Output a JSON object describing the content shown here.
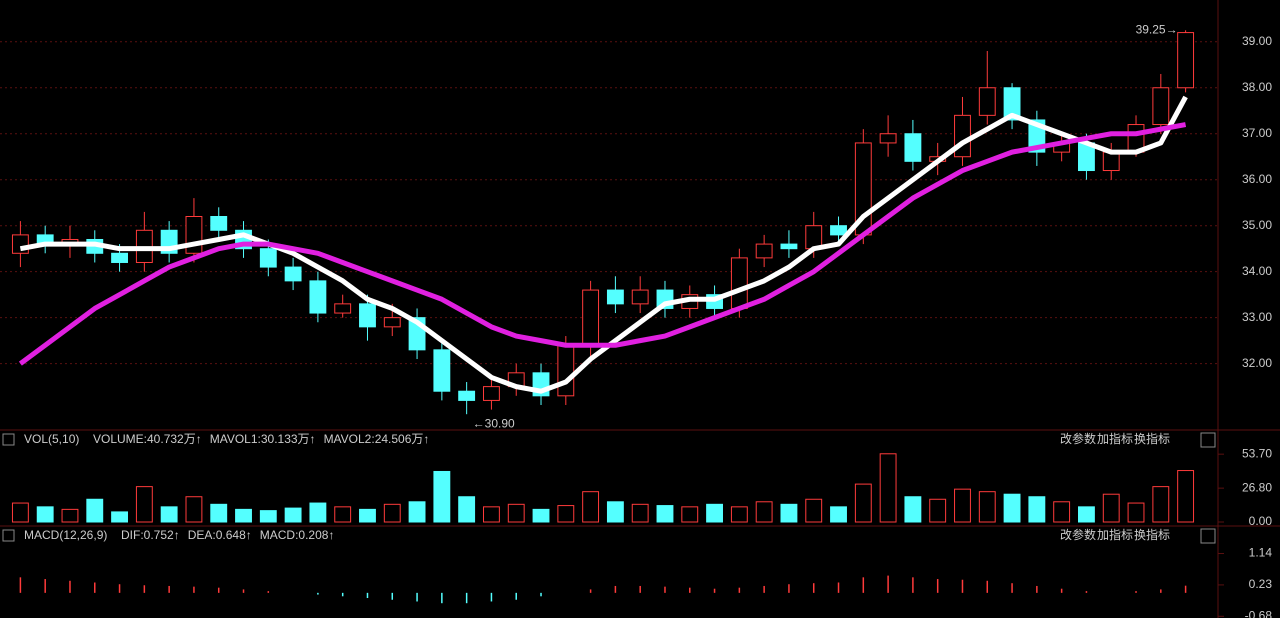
{
  "chart_data": [
    {
      "type": "candlestick",
      "open": [
        34.4,
        34.8,
        34.6,
        34.7,
        34.4,
        34.2,
        34.9,
        34.4,
        35.2,
        34.9,
        34.5,
        34.1,
        33.8,
        33.1,
        33.3,
        32.8,
        33.0,
        32.3,
        31.4,
        31.2,
        31.5,
        31.8,
        31.3,
        32.4,
        33.6,
        33.3,
        33.6,
        33.2,
        33.5,
        33.2,
        34.3,
        34.6,
        34.5,
        35.0,
        34.8,
        36.8,
        37.0,
        36.4,
        36.5,
        37.4,
        38.0,
        37.3,
        36.6,
        36.8,
        36.2,
        36.6,
        37.2,
        38.0
      ],
      "high": [
        35.1,
        35.0,
        35.0,
        34.9,
        34.6,
        35.3,
        35.1,
        35.6,
        35.4,
        35.1,
        34.7,
        34.3,
        34.0,
        33.5,
        33.5,
        33.3,
        33.2,
        32.5,
        31.6,
        31.7,
        32.0,
        32.0,
        32.6,
        33.8,
        33.9,
        33.9,
        33.8,
        33.7,
        33.7,
        34.5,
        34.8,
        34.9,
        35.3,
        35.2,
        37.1,
        37.4,
        37.3,
        36.8,
        37.8,
        38.8,
        38.1,
        37.5,
        37.0,
        37.0,
        36.8,
        37.4,
        38.3,
        39.25
      ],
      "low": [
        34.1,
        34.4,
        34.3,
        34.2,
        34.0,
        34.0,
        34.2,
        34.2,
        34.7,
        34.3,
        33.9,
        33.6,
        32.9,
        33.0,
        32.5,
        32.6,
        32.1,
        31.2,
        30.9,
        31.0,
        31.3,
        31.1,
        31.1,
        32.1,
        33.1,
        33.1,
        33.0,
        33.0,
        33.0,
        33.0,
        34.1,
        34.3,
        34.3,
        34.6,
        34.6,
        36.5,
        36.2,
        36.1,
        36.3,
        37.2,
        37.1,
        36.3,
        36.4,
        36.0,
        36.0,
        36.5,
        37.0,
        37.9
      ],
      "close": [
        34.8,
        34.6,
        34.7,
        34.4,
        34.2,
        34.9,
        34.4,
        35.2,
        34.9,
        34.5,
        34.1,
        33.8,
        33.1,
        33.3,
        32.8,
        33.0,
        32.3,
        31.4,
        31.2,
        31.5,
        31.8,
        31.3,
        32.4,
        33.6,
        33.3,
        33.6,
        33.2,
        33.5,
        33.2,
        34.3,
        34.6,
        34.5,
        35.0,
        34.8,
        36.8,
        37.0,
        36.4,
        36.5,
        37.4,
        38.0,
        37.3,
        36.6,
        36.8,
        36.2,
        36.6,
        37.2,
        38.0,
        39.2
      ],
      "up_color": "#ff3b3b",
      "down_color": "#54ffff",
      "series": [
        {
          "color": "#ffffff",
          "values": [
            34.5,
            34.6,
            34.6,
            34.6,
            34.5,
            34.5,
            34.5,
            34.6,
            34.7,
            34.8,
            34.6,
            34.4,
            34.1,
            33.8,
            33.4,
            33.2,
            32.9,
            32.5,
            32.1,
            31.7,
            31.5,
            31.4,
            31.6,
            32.1,
            32.5,
            32.9,
            33.3,
            33.4,
            33.4,
            33.6,
            33.8,
            34.1,
            34.5,
            34.6,
            35.2,
            35.6,
            36.0,
            36.4,
            36.8,
            37.1,
            37.4,
            37.2,
            37.0,
            36.8,
            36.6,
            36.6,
            36.8,
            37.8
          ]
        },
        {
          "color": "#e020e0",
          "values": [
            32.0,
            32.4,
            32.8,
            33.2,
            33.5,
            33.8,
            34.1,
            34.3,
            34.5,
            34.6,
            34.6,
            34.5,
            34.4,
            34.2,
            34.0,
            33.8,
            33.6,
            33.4,
            33.1,
            32.8,
            32.6,
            32.5,
            32.4,
            32.4,
            32.4,
            32.5,
            32.6,
            32.8,
            33.0,
            33.2,
            33.4,
            33.7,
            34.0,
            34.4,
            34.8,
            35.2,
            35.6,
            35.9,
            36.2,
            36.4,
            36.6,
            36.7,
            36.8,
            36.9,
            37.0,
            37.0,
            37.1,
            37.2
          ]
        }
      ],
      "ylim": [
        30.6,
        39.8
      ],
      "yticks": [
        {
          "value": 32,
          "label": "32.00"
        },
        {
          "value": 33,
          "label": "33.00"
        },
        {
          "value": 34,
          "label": "34.00"
        },
        {
          "value": 35,
          "label": "35.00"
        },
        {
          "value": 36,
          "label": "36.00"
        },
        {
          "value": 37,
          "label": "37.00"
        },
        {
          "value": 38,
          "label": "38.00"
        },
        {
          "value": 39,
          "label": "39.00"
        }
      ],
      "annotations": [
        {
          "value": 39.25,
          "label": "39.25→",
          "index": 47
        },
        {
          "value": 30.9,
          "label": "←30.90",
          "index": 18
        }
      ],
      "grid": true
    },
    {
      "type": "bar",
      "indicator": "VOL(5,10)",
      "readouts": [
        {
          "text": "VOLUME:40.732万↑",
          "color": "#ffffff"
        },
        {
          "text": "MAVOL1:30.133万↑",
          "color": "#f0e060"
        },
        {
          "text": "MAVOL2:24.506万↑",
          "color": "#e020e0"
        }
      ],
      "buttons": [
        "改参数",
        "加指标",
        "换指标"
      ],
      "values": [
        15,
        12,
        10,
        18,
        8,
        28,
        12,
        20,
        14,
        10,
        9,
        11,
        15,
        12,
        10,
        14,
        16,
        40,
        20,
        12,
        14,
        10,
        13,
        24,
        16,
        14,
        13,
        12,
        14,
        12,
        16,
        14,
        18,
        12,
        30,
        54,
        20,
        18,
        26,
        24,
        22,
        20,
        16,
        12,
        22,
        15,
        28,
        40.732
      ],
      "ylim": [
        0,
        57
      ],
      "yticks": [
        {
          "value": 0,
          "label": "0.00"
        },
        {
          "value": 26.8,
          "label": "26.80"
        },
        {
          "value": 53.7,
          "label": "53.70"
        }
      ]
    },
    {
      "type": "macd",
      "indicator": "MACD(12,26,9)",
      "readouts": [
        {
          "text": "DIF:0.752↑",
          "color": "#ffffff"
        },
        {
          "text": "DEA:0.648↑",
          "color": "#f0e060"
        },
        {
          "text": "MACD:0.208↑",
          "color": "#e020e0"
        }
      ],
      "buttons": [
        "改参数",
        "加指标",
        "换指标"
      ],
      "values": [
        0.45,
        0.4,
        0.35,
        0.3,
        0.25,
        0.22,
        0.2,
        0.18,
        0.15,
        0.1,
        0.05,
        0.0,
        -0.05,
        -0.1,
        -0.15,
        -0.2,
        -0.25,
        -0.3,
        -0.3,
        -0.25,
        -0.2,
        -0.1,
        0.0,
        0.1,
        0.2,
        0.2,
        0.18,
        0.15,
        0.12,
        0.15,
        0.2,
        0.25,
        0.28,
        0.3,
        0.45,
        0.5,
        0.45,
        0.4,
        0.38,
        0.35,
        0.28,
        0.2,
        0.12,
        0.05,
        0.0,
        0.05,
        0.1,
        0.208
      ],
      "ylim": [
        -0.7,
        1.3
      ],
      "yticks": [
        {
          "value": -0.68,
          "label": "-0.68"
        },
        {
          "value": 0.23,
          "label": "0.23"
        },
        {
          "value": 1.14,
          "label": "1.14"
        }
      ]
    }
  ]
}
